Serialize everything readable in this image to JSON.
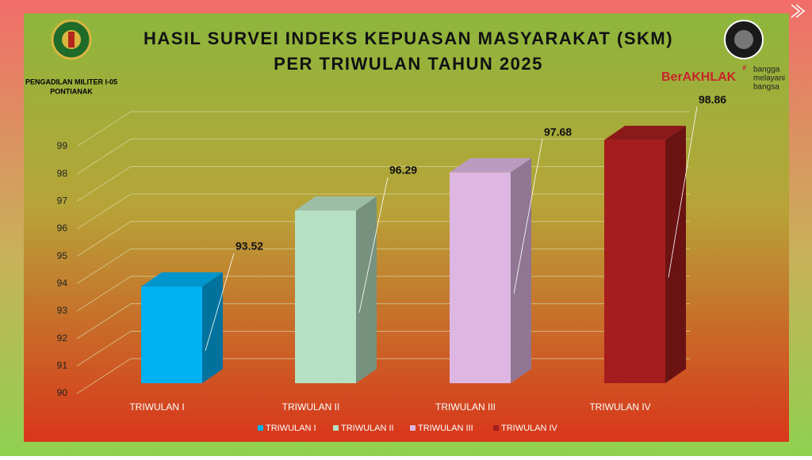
{
  "header": {
    "org": "PENGADILAN MILITER I-05",
    "city": "PONTIANAK",
    "brand": "BerAKHLAK",
    "tagline": [
      "bangga",
      "melayani",
      "bangsa"
    ]
  },
  "chart_data": {
    "type": "bar3d",
    "title": "HASIL SURVEI INDEKS KEPUASAN MASYARAKAT (SKM)",
    "subtitle": "PER TRIWULAN TAHUN 2025",
    "categories": [
      "TRIWULAN I",
      "TRIWULAN II",
      "TRIWULAN III",
      "TRIWULAN IV"
    ],
    "values": [
      93.52,
      96.29,
      97.68,
      98.86
    ],
    "colors": [
      "#00b0f0",
      "#b6e0c2",
      "#ddb6e2",
      "#a51d1d"
    ],
    "ylim": [
      90,
      99
    ],
    "yticks": [
      90,
      91,
      92,
      93,
      94,
      95,
      96,
      97,
      98,
      99
    ],
    "grid": true,
    "legend": "bottom"
  }
}
